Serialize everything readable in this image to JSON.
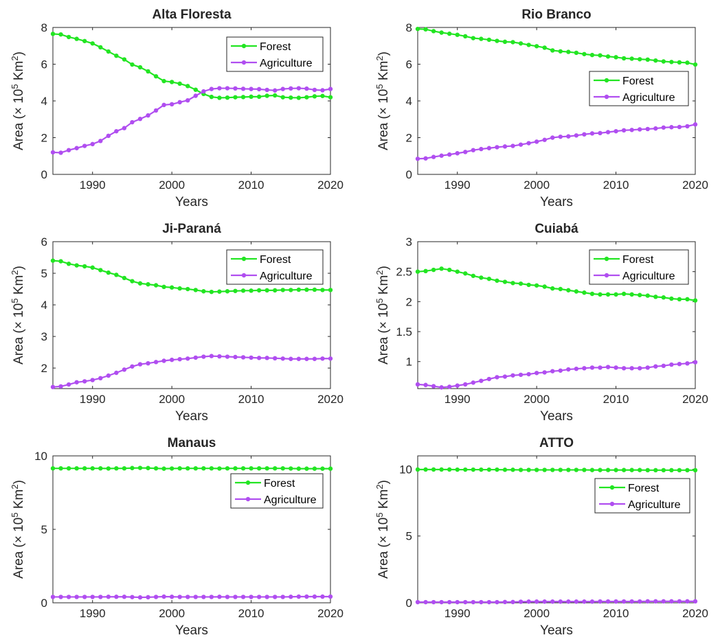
{
  "figure": {
    "xlabel": "Years",
    "ylabel_prefix": "Area (× 10",
    "ylabel_exp": "5",
    "ylabel_mid": " Km",
    "ylabel_exp2": "2",
    "ylabel_suffix": ")"
  },
  "colors": {
    "forest": "#22e522",
    "agriculture": "#b04ef0",
    "axis": "#262626"
  },
  "chart_data": [
    {
      "type": "line",
      "title": "Alta Floresta",
      "xlabel": "Years",
      "ylabel": "Area (× 10^5 Km^2)",
      "xlim": [
        1985,
        2020
      ],
      "ylim": [
        0,
        8
      ],
      "xticks": [
        1990,
        2000,
        2010,
        2020
      ],
      "yticks": [
        0,
        2,
        4,
        6,
        8
      ],
      "legend": "top-right",
      "x": [
        1985,
        1986,
        1987,
        1988,
        1989,
        1990,
        1991,
        1992,
        1993,
        1994,
        1995,
        1996,
        1997,
        1998,
        1999,
        2000,
        2001,
        2002,
        2003,
        2004,
        2005,
        2006,
        2007,
        2008,
        2009,
        2010,
        2011,
        2012,
        2013,
        2014,
        2015,
        2016,
        2017,
        2018,
        2019,
        2020
      ],
      "series": [
        {
          "name": "Forest",
          "values": [
            7.65,
            7.62,
            7.48,
            7.38,
            7.26,
            7.13,
            6.92,
            6.69,
            6.46,
            6.26,
            5.98,
            5.83,
            5.61,
            5.34,
            5.08,
            5.03,
            4.94,
            4.81,
            4.61,
            4.38,
            4.22,
            4.17,
            4.18,
            4.2,
            4.21,
            4.23,
            4.23,
            4.28,
            4.3,
            4.2,
            4.18,
            4.17,
            4.2,
            4.25,
            4.27,
            4.2
          ]
        },
        {
          "name": "Agriculture",
          "values": [
            1.2,
            1.18,
            1.32,
            1.43,
            1.55,
            1.65,
            1.82,
            2.1,
            2.35,
            2.52,
            2.84,
            3.02,
            3.21,
            3.48,
            3.78,
            3.82,
            3.93,
            4.03,
            4.28,
            4.52,
            4.65,
            4.69,
            4.69,
            4.68,
            4.66,
            4.65,
            4.64,
            4.6,
            4.57,
            4.65,
            4.68,
            4.69,
            4.67,
            4.6,
            4.58,
            4.65
          ]
        }
      ]
    },
    {
      "type": "line",
      "title": "Rio Branco",
      "xlabel": "Years",
      "ylabel": "Area (× 10^5 Km^2)",
      "xlim": [
        1985,
        2020
      ],
      "ylim": [
        0,
        8
      ],
      "xticks": [
        1990,
        2000,
        2010,
        2020
      ],
      "yticks": [
        0,
        2,
        4,
        6,
        8
      ],
      "legend": "right",
      "x": [
        1985,
        1986,
        1987,
        1988,
        1989,
        1990,
        1991,
        1992,
        1993,
        1994,
        1995,
        1996,
        1997,
        1998,
        1999,
        2000,
        2001,
        2002,
        2003,
        2004,
        2005,
        2006,
        2007,
        2008,
        2009,
        2010,
        2011,
        2012,
        2013,
        2014,
        2015,
        2016,
        2017,
        2018,
        2019,
        2020
      ],
      "series": [
        {
          "name": "Forest",
          "values": [
            7.92,
            7.9,
            7.8,
            7.72,
            7.66,
            7.6,
            7.52,
            7.42,
            7.38,
            7.33,
            7.27,
            7.22,
            7.2,
            7.13,
            7.05,
            6.98,
            6.9,
            6.75,
            6.7,
            6.67,
            6.62,
            6.55,
            6.5,
            6.48,
            6.42,
            6.38,
            6.32,
            6.3,
            6.27,
            6.25,
            6.2,
            6.15,
            6.12,
            6.1,
            6.08,
            5.98
          ]
        },
        {
          "name": "Agriculture",
          "values": [
            0.85,
            0.87,
            0.95,
            1.02,
            1.08,
            1.15,
            1.22,
            1.32,
            1.38,
            1.43,
            1.48,
            1.52,
            1.55,
            1.62,
            1.7,
            1.78,
            1.88,
            2.0,
            2.05,
            2.07,
            2.12,
            2.18,
            2.23,
            2.25,
            2.3,
            2.35,
            2.4,
            2.42,
            2.45,
            2.47,
            2.5,
            2.55,
            2.57,
            2.58,
            2.62,
            2.72
          ]
        }
      ]
    },
    {
      "type": "line",
      "title": "Ji-Paraná",
      "xlabel": "Years",
      "ylabel": "Area (× 10^5 Km^2)",
      "xlim": [
        1985,
        2020
      ],
      "ylim": [
        1.35,
        6
      ],
      "xticks": [
        1990,
        2000,
        2010,
        2020
      ],
      "yticks": [
        2,
        3,
        4,
        5,
        6
      ],
      "legend": "top-right",
      "x": [
        1985,
        1986,
        1987,
        1988,
        1989,
        1990,
        1991,
        1992,
        1993,
        1994,
        1995,
        1996,
        1997,
        1998,
        1999,
        2000,
        2001,
        2002,
        2003,
        2004,
        2005,
        2006,
        2007,
        2008,
        2009,
        2010,
        2011,
        2012,
        2013,
        2014,
        2015,
        2016,
        2017,
        2018,
        2019,
        2020
      ],
      "series": [
        {
          "name": "Forest",
          "values": [
            5.4,
            5.38,
            5.3,
            5.25,
            5.22,
            5.18,
            5.1,
            5.02,
            4.95,
            4.85,
            4.75,
            4.68,
            4.65,
            4.62,
            4.57,
            4.55,
            4.52,
            4.5,
            4.47,
            4.43,
            4.41,
            4.42,
            4.43,
            4.44,
            4.45,
            4.45,
            4.46,
            4.46,
            4.46,
            4.47,
            4.47,
            4.48,
            4.48,
            4.48,
            4.47,
            4.47
          ]
        },
        {
          "name": "Agriculture",
          "values": [
            1.4,
            1.42,
            1.48,
            1.55,
            1.58,
            1.62,
            1.68,
            1.76,
            1.85,
            1.95,
            2.05,
            2.12,
            2.15,
            2.19,
            2.23,
            2.26,
            2.28,
            2.3,
            2.33,
            2.36,
            2.38,
            2.37,
            2.36,
            2.35,
            2.34,
            2.33,
            2.32,
            2.32,
            2.31,
            2.3,
            2.29,
            2.29,
            2.29,
            2.29,
            2.3,
            2.3
          ]
        }
      ]
    },
    {
      "type": "line",
      "title": "Cuiabá",
      "xlabel": "Years",
      "ylabel": "Area (× 10^5 Km^2)",
      "xlim": [
        1985,
        2020
      ],
      "ylim": [
        0.55,
        3
      ],
      "xticks": [
        1990,
        2000,
        2010,
        2020
      ],
      "yticks": [
        1,
        1.5,
        2,
        2.5,
        3
      ],
      "legend": "top-right",
      "x": [
        1985,
        1986,
        1987,
        1988,
        1989,
        1990,
        1991,
        1992,
        1993,
        1994,
        1995,
        1996,
        1997,
        1998,
        1999,
        2000,
        2001,
        2002,
        2003,
        2004,
        2005,
        2006,
        2007,
        2008,
        2009,
        2010,
        2011,
        2012,
        2013,
        2014,
        2015,
        2016,
        2017,
        2018,
        2019,
        2020
      ],
      "series": [
        {
          "name": "Forest",
          "values": [
            2.5,
            2.51,
            2.53,
            2.55,
            2.53,
            2.5,
            2.47,
            2.43,
            2.4,
            2.38,
            2.35,
            2.33,
            2.31,
            2.3,
            2.28,
            2.27,
            2.25,
            2.22,
            2.21,
            2.19,
            2.17,
            2.15,
            2.13,
            2.12,
            2.12,
            2.12,
            2.13,
            2.12,
            2.11,
            2.1,
            2.08,
            2.07,
            2.05,
            2.04,
            2.04,
            2.02
          ]
        },
        {
          "name": "Agriculture",
          "values": [
            0.62,
            0.61,
            0.59,
            0.57,
            0.58,
            0.6,
            0.62,
            0.65,
            0.68,
            0.71,
            0.74,
            0.75,
            0.77,
            0.78,
            0.79,
            0.81,
            0.82,
            0.84,
            0.85,
            0.87,
            0.88,
            0.89,
            0.9,
            0.9,
            0.91,
            0.9,
            0.89,
            0.89,
            0.89,
            0.9,
            0.92,
            0.93,
            0.95,
            0.96,
            0.97,
            0.99
          ]
        }
      ]
    },
    {
      "type": "line",
      "title": "Manaus",
      "xlabel": "Years",
      "ylabel": "Area (× 10^5 Km^2)",
      "xlim": [
        1985,
        2020
      ],
      "ylim": [
        0,
        10
      ],
      "xticks": [
        1990,
        2000,
        2010,
        2020
      ],
      "yticks": [
        0,
        5,
        10
      ],
      "legend": "right",
      "x": [
        1985,
        1986,
        1987,
        1988,
        1989,
        1990,
        1991,
        1992,
        1993,
        1994,
        1995,
        1996,
        1997,
        1998,
        1999,
        2000,
        2001,
        2002,
        2003,
        2004,
        2005,
        2006,
        2007,
        2008,
        2009,
        2010,
        2011,
        2012,
        2013,
        2014,
        2015,
        2016,
        2017,
        2018,
        2019,
        2020
      ],
      "series": [
        {
          "name": "Forest",
          "values": [
            9.15,
            9.15,
            9.15,
            9.15,
            9.15,
            9.15,
            9.15,
            9.14,
            9.15,
            9.15,
            9.17,
            9.18,
            9.17,
            9.15,
            9.13,
            9.14,
            9.15,
            9.15,
            9.15,
            9.15,
            9.15,
            9.14,
            9.15,
            9.15,
            9.15,
            9.15,
            9.15,
            9.15,
            9.15,
            9.15,
            9.14,
            9.13,
            9.13,
            9.13,
            9.13,
            9.13
          ]
        },
        {
          "name": "Agriculture",
          "values": [
            0.4,
            0.4,
            0.4,
            0.4,
            0.4,
            0.4,
            0.4,
            0.41,
            0.41,
            0.41,
            0.39,
            0.37,
            0.38,
            0.4,
            0.42,
            0.41,
            0.4,
            0.4,
            0.4,
            0.4,
            0.4,
            0.41,
            0.4,
            0.4,
            0.4,
            0.4,
            0.4,
            0.4,
            0.4,
            0.4,
            0.41,
            0.42,
            0.42,
            0.42,
            0.42,
            0.42
          ]
        }
      ]
    },
    {
      "type": "line",
      "title": "ATTO",
      "xlabel": "Years",
      "ylabel": "Area (× 10^5 Km^2)",
      "xlim": [
        1985,
        2020
      ],
      "ylim": [
        0,
        11
      ],
      "xticks": [
        1990,
        2000,
        2010,
        2020
      ],
      "yticks": [
        0,
        5,
        10
      ],
      "legend": "right",
      "x": [
        1985,
        1986,
        1987,
        1988,
        1989,
        1990,
        1991,
        1992,
        1993,
        1994,
        1995,
        1996,
        1997,
        1998,
        1999,
        2000,
        2001,
        2002,
        2003,
        2004,
        2005,
        2006,
        2007,
        2008,
        2009,
        2010,
        2011,
        2012,
        2013,
        2014,
        2015,
        2016,
        2017,
        2018,
        2019,
        2020
      ],
      "series": [
        {
          "name": "Forest",
          "values": [
            9.98,
            9.98,
            9.98,
            9.98,
            9.98,
            9.97,
            9.97,
            9.97,
            9.97,
            9.97,
            9.97,
            9.96,
            9.96,
            9.95,
            9.95,
            9.95,
            9.95,
            9.95,
            9.95,
            9.95,
            9.95,
            9.95,
            9.94,
            9.94,
            9.94,
            9.94,
            9.94,
            9.94,
            9.94,
            9.93,
            9.93,
            9.93,
            9.93,
            9.93,
            9.93,
            9.93
          ]
        },
        {
          "name": "Agriculture",
          "values": [
            0.05,
            0.05,
            0.05,
            0.05,
            0.05,
            0.05,
            0.05,
            0.05,
            0.05,
            0.05,
            0.05,
            0.06,
            0.06,
            0.08,
            0.09,
            0.09,
            0.09,
            0.09,
            0.09,
            0.09,
            0.09,
            0.09,
            0.09,
            0.1,
            0.1,
            0.1,
            0.1,
            0.1,
            0.1,
            0.11,
            0.11,
            0.11,
            0.11,
            0.11,
            0.11,
            0.11
          ]
        }
      ]
    }
  ]
}
